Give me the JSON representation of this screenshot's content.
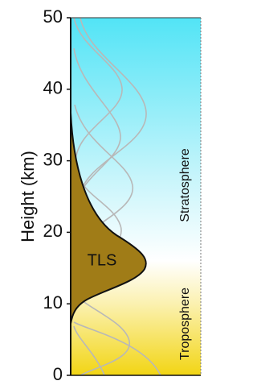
{
  "axis": {
    "label": "Height (km)",
    "ylim": [
      0,
      50
    ],
    "yticks": [
      0,
      10,
      20,
      30,
      40,
      50
    ]
  },
  "labels": {
    "tls": "TLS",
    "stratosphere": "Stratosphere",
    "troposphere": "Troposphere"
  }
}
